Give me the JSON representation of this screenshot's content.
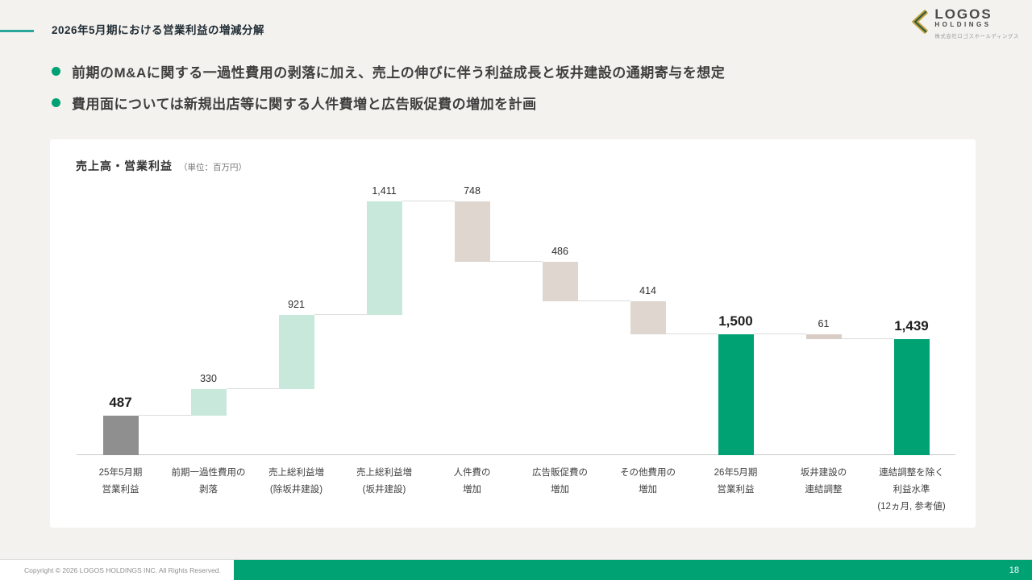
{
  "header": {
    "title": "2026年5月期における営業利益の増減分解",
    "logo": {
      "name": "LOGOS",
      "sub": "HOLDINGS",
      "caption": "株式会社ロゴスホールディングス"
    }
  },
  "bullets": [
    {
      "text": "前期のM&Aに関する一過性費用の剥落に加え、売上の伸びに伴う利益成長と坂井建設の通期寄与を想定"
    },
    {
      "text": "費用面については新規出店等に関する人件費増と広告販促費の増加を計画"
    }
  ],
  "chart_data": {
    "type": "bar",
    "subtype": "waterfall",
    "title": "売上高・営業利益",
    "unit_label": "（単位：百万円）",
    "ylim": [
      0,
      3200
    ],
    "grid": false,
    "bars": [
      {
        "label_lines": [
          "25年5月期",
          "営業利益"
        ],
        "value": 487,
        "display": "487",
        "kind": "total_start",
        "start": 0,
        "end": 487,
        "color_key": "gray",
        "emphasis": true
      },
      {
        "label_lines": [
          "前期一過性費用の",
          "剥落"
        ],
        "value": 330,
        "display": "330",
        "kind": "increase",
        "start": 487,
        "end": 817,
        "color_key": "mint",
        "emphasis": false
      },
      {
        "label_lines": [
          "売上総利益増",
          "(除坂井建設)"
        ],
        "value": 921,
        "display": "921",
        "kind": "increase",
        "start": 817,
        "end": 1738,
        "color_key": "mint",
        "emphasis": false
      },
      {
        "label_lines": [
          "売上総利益増",
          "(坂井建設)"
        ],
        "value": 1411,
        "display": "1,411",
        "kind": "increase",
        "start": 1738,
        "end": 3149,
        "color_key": "mint",
        "emphasis": false
      },
      {
        "label_lines": [
          "人件費の",
          "増加"
        ],
        "value": 748,
        "display": "748",
        "kind": "decrease",
        "start": 3149,
        "end": 2401,
        "color_key": "beige",
        "emphasis": false
      },
      {
        "label_lines": [
          "広告販促費の",
          "増加"
        ],
        "value": 486,
        "display": "486",
        "kind": "decrease",
        "start": 2401,
        "end": 1915,
        "color_key": "beige",
        "emphasis": false
      },
      {
        "label_lines": [
          "その他費用の",
          "増加"
        ],
        "value": 414,
        "display": "414",
        "kind": "decrease",
        "start": 1915,
        "end": 1501,
        "color_key": "beige",
        "emphasis": false
      },
      {
        "label_lines": [
          "26年5月期",
          "営業利益"
        ],
        "value": 1500,
        "display": "1,500",
        "kind": "total",
        "start": 0,
        "end": 1500,
        "color_key": "green",
        "emphasis": true
      },
      {
        "label_lines": [
          "坂井建設の",
          "連結調整"
        ],
        "value": 61,
        "display": "61",
        "kind": "decrease",
        "start": 1500,
        "end": 1439,
        "color_key": "lightbeige",
        "emphasis": false
      },
      {
        "label_lines": [
          "連結調整を除く",
          "利益水準",
          "(12ヵ月, 参考値)"
        ],
        "value": 1439,
        "display": "1,439",
        "kind": "total",
        "start": 0,
        "end": 1439,
        "color_key": "green",
        "emphasis": true
      }
    ],
    "colors": {
      "gray": "#8f8f8f",
      "mint": "#c7e8db",
      "beige": "#ded6cf",
      "lightbeige": "#d9cdc6",
      "green": "#00a173"
    }
  },
  "footer": {
    "copyright": "Copyright © 2026 LOGOS HOLDINGS INC. All Rights Reserved.",
    "page_number": "18"
  },
  "theme_colors": {
    "accent_teal": "#2aa79b",
    "accent_green": "#00a173",
    "slide_background": "#f4f2ef"
  }
}
